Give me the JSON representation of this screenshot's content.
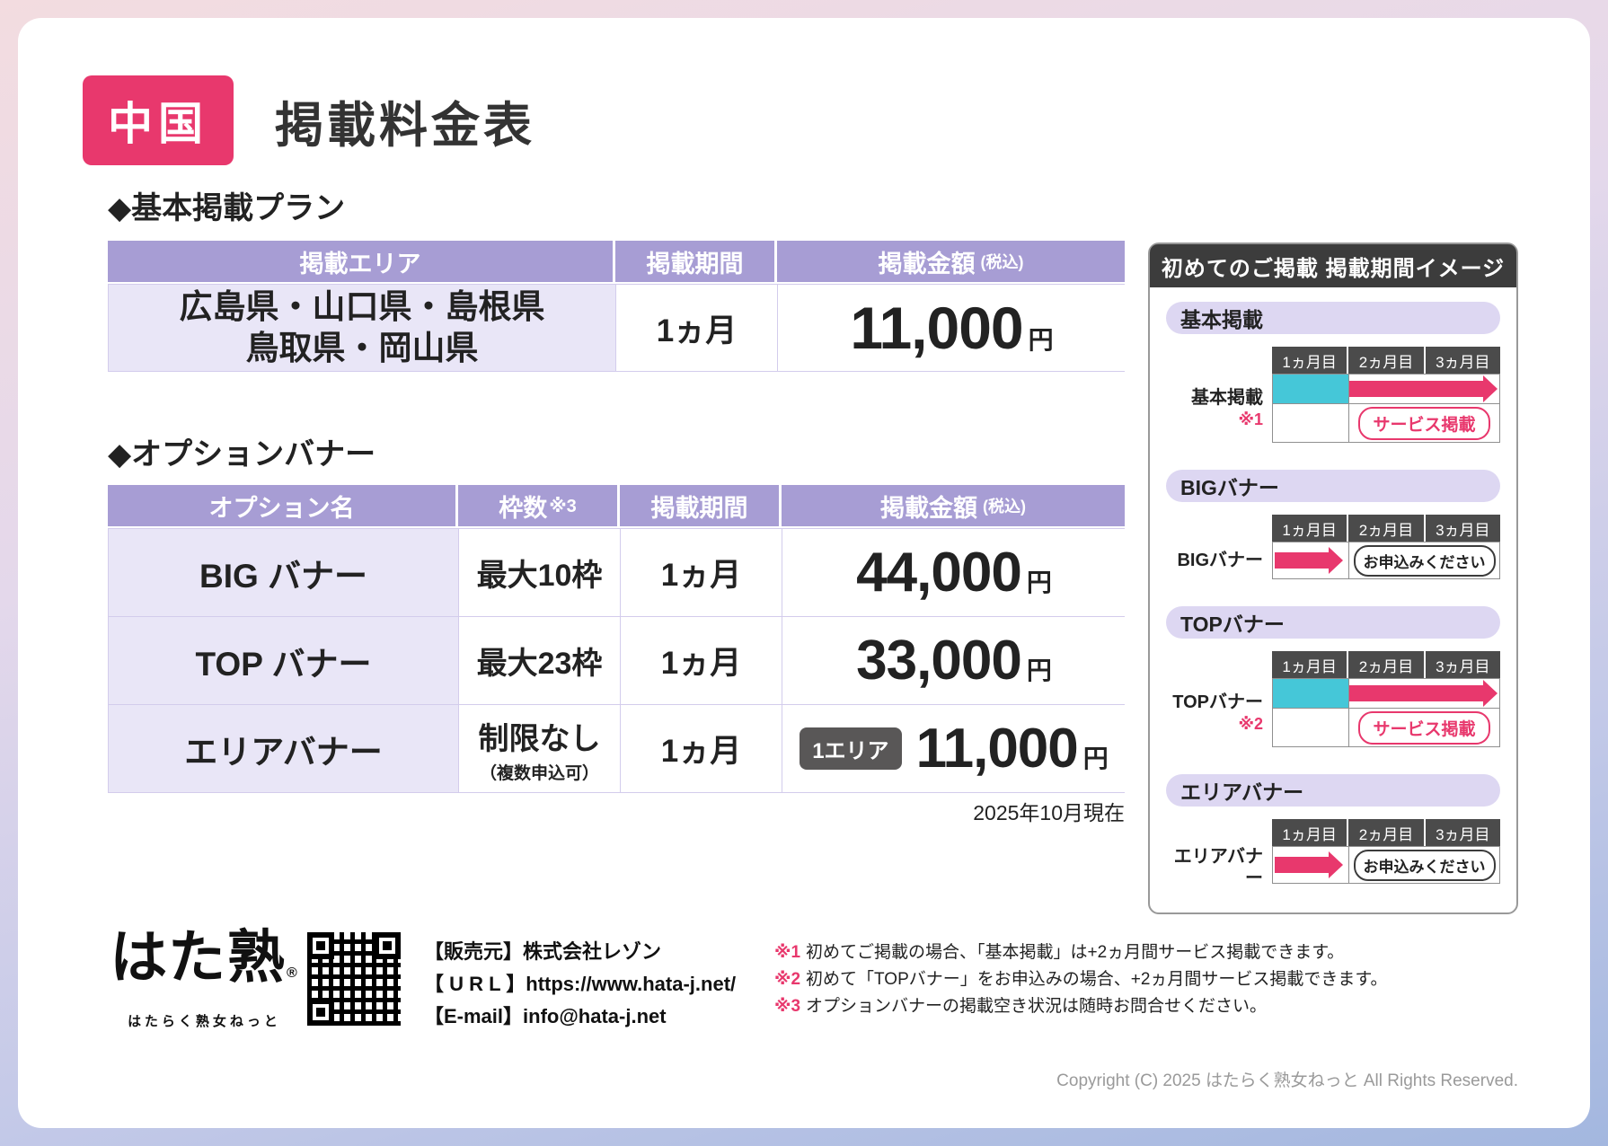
{
  "colors": {
    "accent_pink": "#E8386D",
    "header_lavender": "#A79DD4",
    "light_lavender": "#E9E6F7",
    "cyan": "#45C7D8",
    "dark_gray": "#3C3C3C"
  },
  "page": {
    "badge": "中国",
    "title": "掲載料金表"
  },
  "basic": {
    "heading": "◆基本掲載プラン",
    "col_area": "掲載エリア",
    "col_period": "掲載期間",
    "col_price": "掲載金額",
    "col_price_note": "(税込)",
    "area_line1": "広島県・山口県・島根県",
    "area_line2": "鳥取県・岡山県",
    "period": "1ヵ月",
    "price": "11,000",
    "unit": "円"
  },
  "options": {
    "heading": "◆オプションバナー",
    "col_name": "オプション名",
    "col_slots": "枠数",
    "col_slots_note": "※3",
    "col_period": "掲載期間",
    "col_price": "掲載金額",
    "col_price_note": "(税込)",
    "rows": [
      {
        "name": "BIG バナー",
        "slots": "最大10枠",
        "period": "1ヵ月",
        "price": "44,000",
        "unit": "円"
      },
      {
        "name": "TOP バナー",
        "slots": "最大23枠",
        "period": "1ヵ月",
        "price": "33,000",
        "unit": "円"
      },
      {
        "name": "エリアバナー",
        "slots": "制限なし",
        "slots_note": "（複数申込可）",
        "period": "1ヵ月",
        "price_badge": "1エリア",
        "price": "11,000",
        "unit": "円"
      }
    ],
    "as_of": "2025年10月現在"
  },
  "sidebar": {
    "title": "初めてのご掲載 掲載期間イメージ",
    "months": [
      "1ヵ月目",
      "2ヵ月目",
      "3ヵ月目"
    ],
    "blocks": [
      {
        "pill": "基本掲載",
        "label": "基本掲載",
        "note": "※1",
        "service_label": "サービス掲載"
      },
      {
        "pill": "BIGバナー",
        "label": "BIGバナー",
        "apply_label": "お申込みください"
      },
      {
        "pill": "TOPバナー",
        "label": "TOPバナー",
        "note": "※2",
        "service_label": "サービス掲載"
      },
      {
        "pill": "エリアバナー",
        "label": "エリアバナー",
        "apply_label": "お申込みください"
      }
    ]
  },
  "footer": {
    "logo": "はた熟",
    "logo_reg": "®",
    "logo_sub": "はたらく熟女ねっと",
    "publisher_label": "【販売元】",
    "publisher": "株式会社レゾン",
    "url_label": "【 U R L 】",
    "url": "https://www.hata-j.net/",
    "email_label": "【E-mail】",
    "email": "info@hata-j.net",
    "notes": [
      {
        "mark": "※1",
        "text": "初めてご掲載の場合、「基本掲載」は+2ヵ月間サービス掲載できます。"
      },
      {
        "mark": "※2",
        "text": "初めて「TOPバナー」をお申込みの場合、+2ヵ月間サービス掲載できます。"
      },
      {
        "mark": "※3",
        "text": "オプションバナーの掲載空き状況は随時お問合せください。"
      }
    ],
    "copyright": "Copyright (C) 2025 はたらく熟女ねっと All Rights Reserved."
  }
}
